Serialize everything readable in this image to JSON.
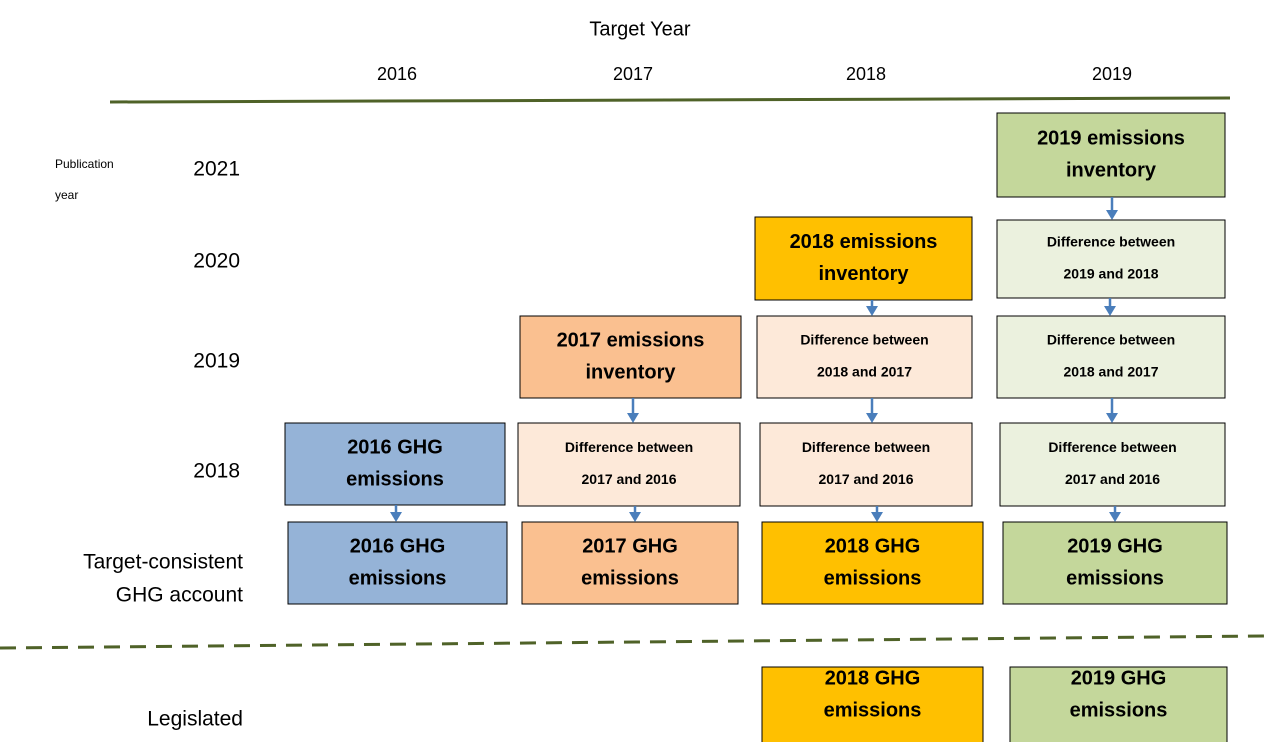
{
  "header": {
    "title": "Target Year",
    "columns": [
      "2016",
      "2017",
      "2018",
      "2019"
    ]
  },
  "rows": {
    "publication_label": [
      "Publication",
      "year"
    ],
    "years": [
      "2021",
      "2020",
      "2019",
      "2018"
    ],
    "account_label": [
      "Target-consistent",
      "GHG account"
    ],
    "legislated_label": "Legislated"
  },
  "boxes": [
    {
      "lines": [
        "2019 emissions",
        "inventory"
      ],
      "color": "#c4d79b",
      "style": "main"
    },
    {
      "lines": [
        "2018 emissions",
        "inventory"
      ],
      "color": "#ffc000",
      "style": "main"
    },
    {
      "lines": [
        "Difference between",
        "2019 and 2018"
      ],
      "color": "#ebf1de",
      "style": "diff"
    },
    {
      "lines": [
        "2017 emissions",
        "inventory"
      ],
      "color": "#fac090",
      "style": "main"
    },
    {
      "lines": [
        "Difference between",
        "2018 and 2017"
      ],
      "color": "#fde9d9",
      "style": "diff"
    },
    {
      "lines": [
        "Difference between",
        "2018 and 2017"
      ],
      "color": "#ebf1de",
      "style": "diff"
    },
    {
      "lines": [
        "2016 GHG",
        "emissions"
      ],
      "color": "#95b3d7",
      "style": "main"
    },
    {
      "lines": [
        "Difference between",
        "2017 and 2016"
      ],
      "color": "#fde9d9",
      "style": "diff"
    },
    {
      "lines": [
        "Difference between",
        "2017 and 2016"
      ],
      "color": "#fde9d9",
      "style": "diff"
    },
    {
      "lines": [
        "Difference between",
        "2017 and 2016"
      ],
      "color": "#ebf1de",
      "style": "diff"
    },
    {
      "lines": [
        "2016 GHG",
        "emissions"
      ],
      "color": "#95b3d7",
      "style": "main"
    },
    {
      "lines": [
        "2017 GHG",
        "emissions"
      ],
      "color": "#fac090",
      "style": "main"
    },
    {
      "lines": [
        "2018 GHG",
        "emissions"
      ],
      "color": "#ffc000",
      "style": "main"
    },
    {
      "lines": [
        "2019 GHG",
        "emissions"
      ],
      "color": "#c4d79b",
      "style": "main"
    },
    {
      "lines": [
        "2018 GHG",
        "emissions"
      ],
      "color": "#ffc000",
      "style": "main"
    },
    {
      "lines": [
        "2019 GHG",
        "emissions"
      ],
      "color": "#c4d79b",
      "style": "main"
    }
  ]
}
